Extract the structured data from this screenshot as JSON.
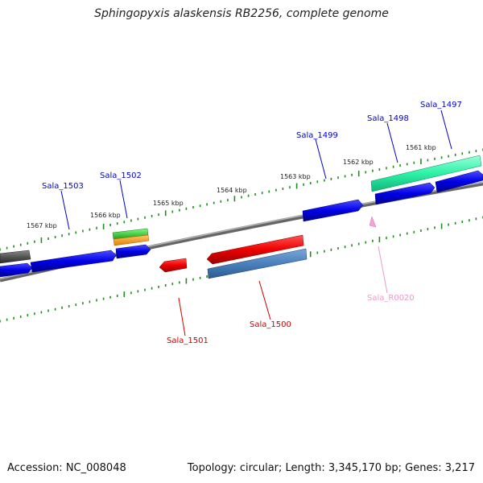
{
  "title": "Sphingopyxis alaskensis RB2256, complete genome",
  "footer": {
    "accession": "Accession: NC_008048",
    "summary": "Topology: circular; Length: 3,345,170 bp; Genes: 3,217"
  },
  "ticks": [
    "1561 kbp",
    "1562 kbp",
    "1563 kbp",
    "1564 kbp",
    "1565 kbp",
    "1566 kbp",
    "1567 kbp"
  ],
  "genes": [
    {
      "label": "Sala_1497",
      "color": "#0000cc",
      "feature": "cds-blue",
      "strand": "forward"
    },
    {
      "label": "Sala_1498",
      "color": "#0000cc",
      "feature": "cds-blue",
      "strand": "forward"
    },
    {
      "label": "Sala_1499",
      "color": "#0000cc",
      "feature": "cds-blue",
      "strand": "forward"
    },
    {
      "label": "Sala_1500",
      "color": "#cc0000",
      "feature": "cds-red",
      "strand": "reverse"
    },
    {
      "label": "Sala_1501",
      "color": "#cc0000",
      "feature": "cds-red",
      "strand": "reverse"
    },
    {
      "label": "Sala_1502",
      "color": "#0000cc",
      "feature": "cds-blue",
      "strand": "forward"
    },
    {
      "label": "Sala_1503",
      "color": "#0000cc",
      "feature": "cds-blue",
      "strand": "forward"
    },
    {
      "label": "Sala_R0020",
      "color": "#ee99cc",
      "feature": "rna-pink",
      "strand": "reverse"
    }
  ]
}
